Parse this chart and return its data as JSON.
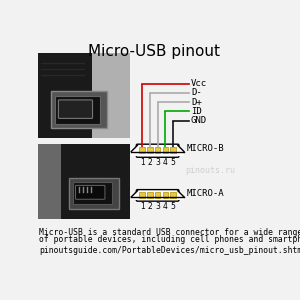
{
  "title": "Micro-USB pinout",
  "title_fontsize": 11,
  "bg_color": "#f2f2f2",
  "pin_labels": [
    "Vcc",
    "D-",
    "D+",
    "ID",
    "GND"
  ],
  "pin_colors": [
    "#cc0000",
    "#aaaaaa",
    "#aaaaaa",
    "#00aa00",
    "#111111"
  ],
  "pin_numbers": [
    "1",
    "2",
    "3",
    "4",
    "5"
  ],
  "connector_label_b": "MICRO-B",
  "connector_label_a": "MICRO-A",
  "footer_text1": "Micro-USB is a standard USB connector for a wide range",
  "footer_text2": "of portable devices, including cell phones and smartphones",
  "footer_url": "pinoutsguide.com/PortableDevices/micro_usb_pinout.shtml",
  "watermark": "pinouts.ru",
  "watermark_color": "#cccccc",
  "footer_fontsize": 5.8,
  "url_fontsize": 5.8
}
